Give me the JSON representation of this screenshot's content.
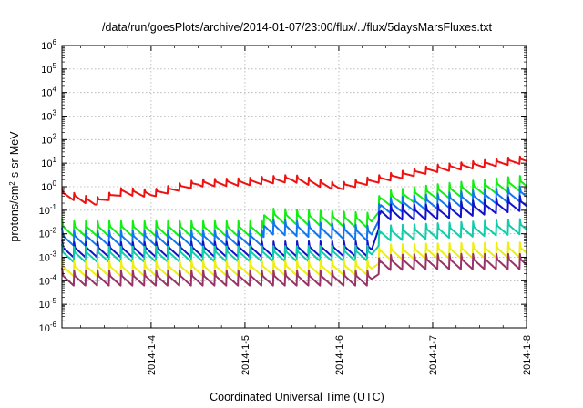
{
  "chart_data": {
    "type": "line",
    "title": "/data/run/goesPlots/archive/2014-01-07/23:00/flux/../flux/5daysMarsFluxes.txt",
    "xlabel": "Coordinated Universal Time (UTC)",
    "ylabel": "protons/cm²-s-sr-MeV",
    "ylabel_parts": {
      "base": "protons/cm",
      "sup": "2",
      "rest": "-s-sr-MeV"
    },
    "y_scale": "log",
    "ylim_exponents": [
      -6,
      6
    ],
    "y_tick_base": "10",
    "y_tick_exponents": [
      "-6",
      "-5",
      "-4",
      "-3",
      "-2",
      "-1",
      "0",
      "1",
      "2",
      "3",
      "4",
      "5",
      "6"
    ],
    "x_range_days": [
      3.05,
      8.0
    ],
    "x_tick_labels": [
      "2014-1-4",
      "2014-1-5",
      "2014-1-6",
      "2014-1-7",
      "2014-1-8"
    ],
    "x_tick_days": [
      4,
      5,
      6,
      7,
      8
    ],
    "grid": true,
    "sawtooth_periods_per_day": 8,
    "series": [
      {
        "color": "#ee1111",
        "log_flux_start_end": [
          [
            3.05,
            -0.25
          ],
          [
            3.4,
            -0.6
          ],
          [
            3.7,
            -0.15
          ],
          [
            4.0,
            -0.25
          ],
          [
            4.5,
            0.2
          ],
          [
            5.0,
            0.25
          ],
          [
            5.5,
            0.4
          ],
          [
            6.0,
            0.05
          ],
          [
            6.4,
            0.35
          ],
          [
            7.0,
            0.8
          ],
          [
            7.5,
            1.0
          ],
          [
            8.0,
            1.2
          ]
        ]
      },
      {
        "color": "#11ee11",
        "log_flux_start_end": [
          [
            3.05,
            -1.7
          ],
          [
            5.2,
            -1.7
          ],
          [
            5.2,
            -1.15
          ],
          [
            6.35,
            -1.35
          ],
          [
            6.45,
            -0.45
          ],
          [
            7.0,
            -0.15
          ],
          [
            8.0,
            0.25
          ]
        ]
      },
      {
        "color": "#1177ee",
        "log_flux_start_end": [
          [
            3.05,
            -2.1
          ],
          [
            5.2,
            -2.1
          ],
          [
            5.2,
            -1.6
          ],
          [
            6.35,
            -1.9
          ],
          [
            6.45,
            -0.75
          ],
          [
            7.0,
            -0.55
          ],
          [
            8.0,
            -0.2
          ]
        ]
      },
      {
        "color": "#1111cc",
        "log_flux_start_end": [
          [
            3.05,
            -2.6
          ],
          [
            6.35,
            -2.55
          ],
          [
            6.45,
            -1.0
          ],
          [
            7.0,
            -1.0
          ],
          [
            8.0,
            -0.6
          ]
        ]
      },
      {
        "color": "#11ccaa",
        "log_flux_start_end": [
          [
            3.05,
            -2.8
          ],
          [
            6.35,
            -2.75
          ],
          [
            6.45,
            -1.9
          ],
          [
            7.0,
            -1.8
          ],
          [
            8.0,
            -1.6
          ]
        ]
      },
      {
        "color": "#eeee11",
        "log_flux_start_end": [
          [
            3.05,
            -3.4
          ],
          [
            6.35,
            -3.35
          ],
          [
            6.45,
            -2.7
          ],
          [
            7.0,
            -2.65
          ],
          [
            8.0,
            -2.6
          ]
        ]
      },
      {
        "color": "#993366",
        "log_flux_start_end": [
          [
            3.05,
            -3.8
          ],
          [
            6.35,
            -3.8
          ],
          [
            6.45,
            -3.15
          ],
          [
            7.0,
            -3.1
          ],
          [
            8.0,
            -3.1
          ]
        ]
      }
    ]
  }
}
